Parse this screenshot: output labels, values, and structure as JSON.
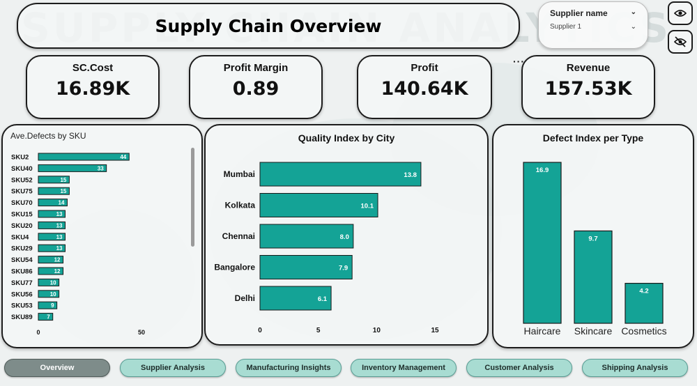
{
  "header": {
    "title": "Supply Chain Overview",
    "watermark": "SUPPLY CHAIN ANALYTICS"
  },
  "slicer": {
    "label": "Supplier name",
    "value": "Supplier 1"
  },
  "kpis": [
    {
      "label": "SC.Cost",
      "value": "16.89K"
    },
    {
      "label": "Profit Margin",
      "value": "0.89"
    },
    {
      "label": "Profit",
      "value": "140.64K"
    },
    {
      "label": "Revenue",
      "value": "157.53K"
    }
  ],
  "more_options": "···",
  "colors": {
    "bar": "#14a396",
    "bar_border": "#1a1a1a",
    "accent_nav": "#a8dcd2",
    "nav_active": "#7e8c8a"
  },
  "chart_data": [
    {
      "type": "bar",
      "orientation": "horizontal",
      "title": "Ave.Defects by SKU",
      "categories": [
        "SKU2",
        "SKU40",
        "SKU52",
        "SKU75",
        "SKU70",
        "SKU15",
        "SKU20",
        "SKU4",
        "SKU29",
        "SKU54",
        "SKU86",
        "SKU77",
        "SKU56",
        "SKU53",
        "SKU89"
      ],
      "values": [
        44,
        33,
        15,
        15,
        14,
        13,
        13,
        13,
        13,
        12,
        12,
        10,
        10,
        9,
        7
      ],
      "xticks": [
        0,
        50
      ],
      "xlim": [
        0,
        50
      ]
    },
    {
      "type": "bar",
      "orientation": "horizontal",
      "title": "Quality Index by City",
      "categories": [
        "Mumbai",
        "Kolkata",
        "Chennai",
        "Bangalore",
        "Delhi"
      ],
      "values": [
        13.8,
        10.1,
        8.0,
        7.9,
        6.1
      ],
      "value_labels": [
        "13.8",
        "10.1",
        "8.0",
        "7.9",
        "6.1"
      ],
      "xticks": [
        0,
        5,
        10,
        15
      ],
      "xlim": [
        0,
        15
      ]
    },
    {
      "type": "bar",
      "orientation": "vertical",
      "title": "Defect Index per Type",
      "categories": [
        "Haircare",
        "Skincare",
        "Cosmetics"
      ],
      "values": [
        16.9,
        9.7,
        4.2
      ],
      "value_labels": [
        "16.9",
        "9.7",
        "4.2"
      ],
      "ylim": [
        0,
        18
      ]
    }
  ],
  "nav": [
    {
      "label": "Overview",
      "active": true
    },
    {
      "label": "Supplier Analysis",
      "active": false
    },
    {
      "label": "Manufacturing Insights",
      "active": false
    },
    {
      "label": "Inventory Management",
      "active": false
    },
    {
      "label": "Customer Analysis",
      "active": false
    },
    {
      "label": "Shipping Analysis",
      "active": false
    }
  ],
  "icons": {
    "show": "eye-icon",
    "hide": "eye-off-icon",
    "dropdown": "chevron-down-icon"
  }
}
